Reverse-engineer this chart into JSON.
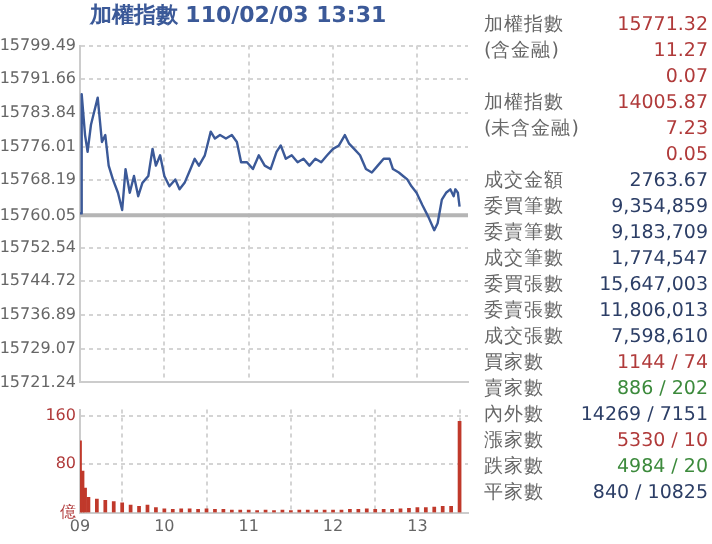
{
  "chart_data": [
    {
      "type": "line",
      "title": "加權指數 110/02/03 13:31",
      "x": [
        9.0,
        9.02,
        9.06,
        9.09,
        9.13,
        9.16,
        9.21,
        9.26,
        9.3,
        9.34,
        9.39,
        9.45,
        9.5,
        9.54,
        9.59,
        9.64,
        9.69,
        9.74,
        9.81,
        9.86,
        9.9,
        9.95,
        10.0,
        10.06,
        10.13,
        10.18,
        10.24,
        10.31,
        10.36,
        10.41,
        10.48,
        10.55,
        10.6,
        10.66,
        10.73,
        10.8,
        10.86,
        10.91,
        10.98,
        11.05,
        11.12,
        11.19,
        11.26,
        11.33,
        11.38,
        11.44,
        11.51,
        11.58,
        11.65,
        11.72,
        11.79,
        11.86,
        11.93,
        12.0,
        12.07,
        12.14,
        12.19,
        12.25,
        12.32,
        12.39,
        12.46,
        12.53,
        12.6,
        12.67,
        12.71,
        12.78,
        12.83,
        12.88,
        12.93,
        12.99,
        13.06,
        13.13,
        13.2,
        13.24,
        13.29,
        13.34,
        13.39,
        13.43,
        13.45,
        13.48,
        13.5
      ],
      "series": [
        {
          "color": "#3b5998",
          "values": [
            15760.5,
            15788.2,
            15778.7,
            15774.8,
            15781.1,
            15783.5,
            15787.4,
            15777.1,
            15778.7,
            15771.6,
            15768.4,
            15765.3,
            15761.3,
            15770.8,
            15765.3,
            15769.2,
            15764.5,
            15767.6,
            15769.2,
            15775.5,
            15771.6,
            15774.0,
            15769.2,
            15766.8,
            15768.4,
            15766.1,
            15767.6,
            15770.8,
            15773.2,
            15771.6,
            15774.0,
            15779.5,
            15777.9,
            15778.7,
            15777.9,
            15778.7,
            15777.1,
            15772.4,
            15772.4,
            15770.8,
            15774.0,
            15771.6,
            15770.8,
            15774.8,
            15776.3,
            15773.2,
            15774.0,
            15772.4,
            15773.2,
            15771.6,
            15773.2,
            15772.4,
            15774.0,
            15775.5,
            15776.3,
            15778.7,
            15776.7,
            15775.5,
            15774.0,
            15770.8,
            15770.0,
            15771.6,
            15773.2,
            15773.2,
            15770.8,
            15770.0,
            15769.2,
            15768.4,
            15766.8,
            15765.3,
            15762.4,
            15759.7,
            15756.6,
            15758.2,
            15763.7,
            15765.3,
            15766.1,
            15764.5,
            15766.1,
            15765.3,
            15762.1
          ]
        }
      ],
      "xlim": [
        9,
        13.6
      ],
      "xticks": [
        9,
        10,
        11,
        12,
        13
      ],
      "ylim": [
        15721.24,
        15799.49
      ],
      "yticks": [
        15799.49,
        15791.66,
        15783.84,
        15776.01,
        15768.19,
        15760.05,
        15752.54,
        15744.72,
        15736.89,
        15729.07,
        15721.24
      ],
      "ref_lines": [
        {
          "axis": "y",
          "value": 15760.05,
          "color": "#b5b5b5"
        }
      ],
      "grid": true,
      "tick_labels": "y"
    },
    {
      "type": "bar",
      "x": [
        9.0,
        9.03,
        9.06,
        9.1,
        9.2,
        9.3,
        9.4,
        9.5,
        9.6,
        9.7,
        9.8,
        9.9,
        10.0,
        10.1,
        10.2,
        10.3,
        10.4,
        10.5,
        10.6,
        10.7,
        10.8,
        10.9,
        11.0,
        11.1,
        11.2,
        11.3,
        11.4,
        11.5,
        11.6,
        11.7,
        11.8,
        11.9,
        12.0,
        12.1,
        12.2,
        12.3,
        12.4,
        12.5,
        12.6,
        12.7,
        12.8,
        12.9,
        13.0,
        13.1,
        13.2,
        13.3,
        13.4,
        13.5
      ],
      "values": [
        118,
        68,
        40,
        25,
        22,
        20,
        18,
        16,
        12,
        10,
        12,
        8,
        6,
        5,
        6,
        6,
        5,
        6,
        5,
        5,
        4,
        4,
        4,
        3,
        4,
        3,
        4,
        3,
        4,
        4,
        4,
        4,
        4,
        4,
        5,
        5,
        6,
        5,
        5,
        5,
        6,
        7,
        8,
        8,
        9,
        10,
        10,
        150
      ],
      "color": "#c0392b",
      "xlim": [
        9,
        13.6
      ],
      "xticks": [
        {
          "value": 9,
          "label": "09"
        },
        {
          "value": 10,
          "label": "10"
        },
        {
          "value": 11,
          "label": "11"
        },
        {
          "value": 12,
          "label": "12"
        },
        {
          "value": 13,
          "label": "13"
        }
      ],
      "ylim": [
        0,
        170
      ],
      "yticks": [
        {
          "value": 0,
          "label": "億"
        },
        80,
        160
      ],
      "grid": true
    },
    {
      "type": "other",
      "categories": [
        "加權指數",
        "(含金融)",
        null,
        "加權指數",
        "(未含金融)",
        null,
        "成交金額",
        "委買筆數",
        "委賣筆數",
        "成交筆數",
        "委買張數",
        "委賣張數",
        "成交張數",
        "買家數",
        "賣家數",
        "內外數",
        "漲家數",
        "跌家數",
        "平家數"
      ],
      "value_labels": [
        "15771.32",
        "11.27",
        "0.07",
        "14005.87",
        "7.23",
        "0.05",
        "2763.67",
        "9,354,859",
        "9,183,709",
        "1,774,547",
        "15,647,003",
        "11,806,013",
        "7,598,610",
        "1144 / 74",
        "886 / 202",
        "14269 / 7151",
        "5330 / 10",
        "4984 / 20",
        "840 / 10825"
      ],
      "colors": [
        "#b03a3a",
        "#b03a3a",
        "#b03a3a",
        "#b03a3a",
        "#b03a3a",
        "#b03a3a",
        "#2c3e66",
        "#2c3e66",
        "#2c3e66",
        "#2c3e66",
        "#2c3e66",
        "#2c3e66",
        "#2c3e66",
        "#b03a3a",
        "#3c8a3c",
        "#2c3e66",
        "#b03a3a",
        "#3c8a3c",
        "#2c3e66"
      ]
    }
  ]
}
